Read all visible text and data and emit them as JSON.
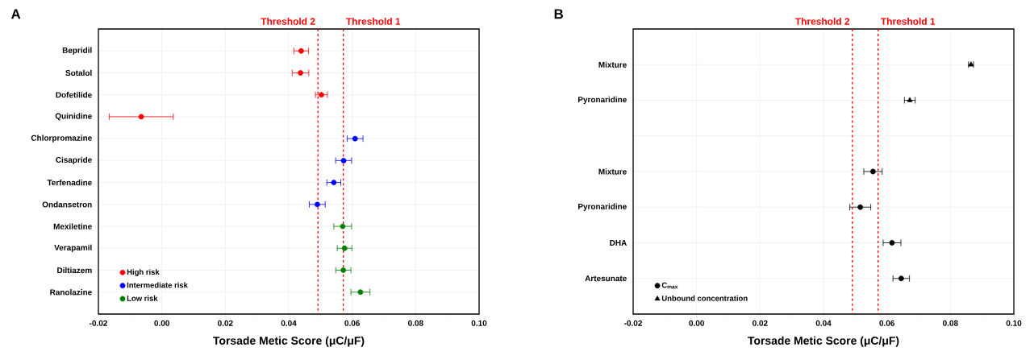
{
  "chart_data": [
    {
      "type": "scatter",
      "title": "A",
      "orientation": "horizontal",
      "xlabel": "Torsade Metic Score (μC/μF)",
      "categories": [
        "Bepridil",
        "Sotalol",
        "Dofetilide",
        "Quinidine",
        "Chlorpromazine",
        "Cisapride",
        "Terfenadine",
        "Ondansetron",
        "Mexiletine",
        "Verapamil",
        "Diltiazem",
        "Ranolazine"
      ],
      "series": [
        {
          "name": "High risk",
          "color": "#ff0000",
          "marker": "circle",
          "values": [
            0.0439,
            0.0437,
            0.0503,
            -0.0065,
            null,
            null,
            null,
            null,
            null,
            null,
            null,
            null
          ],
          "errors": [
            0.0023,
            0.0026,
            0.0019,
            0.0101,
            null,
            null,
            null,
            null,
            null,
            null,
            null,
            null
          ]
        },
        {
          "name": "Intermediate risk",
          "color": "#0000ff",
          "marker": "circle",
          "values": [
            null,
            null,
            null,
            null,
            0.0609,
            0.0573,
            0.0542,
            0.049,
            null,
            null,
            null,
            null
          ],
          "errors": [
            null,
            null,
            null,
            null,
            0.0025,
            0.0025,
            0.0022,
            0.0025,
            null,
            null,
            null,
            null
          ]
        },
        {
          "name": "Low risk",
          "color": "#008000",
          "marker": "circle",
          "values": [
            null,
            null,
            null,
            null,
            null,
            null,
            null,
            null,
            0.057,
            0.0576,
            0.0572,
            0.0626
          ],
          "errors": [
            null,
            null,
            null,
            null,
            null,
            null,
            null,
            null,
            0.0028,
            0.0023,
            0.0024,
            0.003
          ]
        }
      ],
      "xlim": [
        -0.02,
        0.1
      ],
      "xticks": [
        {
          "value": -0.02,
          "label": "-0.02"
        },
        {
          "value": 0,
          "label": "0.00"
        },
        {
          "value": 0.02,
          "label": "0.02"
        },
        {
          "value": 0.04,
          "label": "0.04"
        },
        {
          "value": 0.06,
          "label": "0.06"
        },
        {
          "value": 0.08,
          "label": "0.08"
        },
        {
          "value": 0.1,
          "label": "0.10"
        }
      ],
      "ref_lines": [
        {
          "axis": "x",
          "value": 0.0572,
          "label": "Threshold 1",
          "color": "#ff0000",
          "line_style": "dashed"
        },
        {
          "axis": "x",
          "value": 0.0492,
          "label": "Threshold 2",
          "color": "#ff0000",
          "line_style": "dashed"
        }
      ],
      "grid": true,
      "legend": "bottom left"
    },
    {
      "type": "scatter",
      "title": "B",
      "orientation": "horizontal",
      "xlabel": "Torsade Metic Score (μC/μF)",
      "categories": [
        "Mixture",
        "Pyronaridine",
        null,
        "Mixture",
        "Pyronaridine",
        "DHA",
        "Artesunate"
      ],
      "series": [
        {
          "name": "C$_{max}$",
          "color": "#000000",
          "marker": "circle",
          "values": [
            null,
            null,
            null,
            0.0556,
            0.0516,
            0.0616,
            0.0645
          ],
          "errors": [
            null,
            null,
            null,
            0.0029,
            0.0033,
            0.0028,
            0.0026
          ]
        },
        {
          "name": "Unbound concentration",
          "color": "#000000",
          "marker": "triangle",
          "values": [
            0.0865,
            0.0672,
            null,
            null,
            null,
            null,
            null
          ],
          "errors": [
            0.0008,
            0.0017,
            null,
            null,
            null,
            null,
            null
          ]
        }
      ],
      "xlim": [
        -0.02,
        0.1
      ],
      "xticks": [
        {
          "value": -0.02,
          "label": "-0.02"
        },
        {
          "value": 0,
          "label": "0.00"
        },
        {
          "value": 0.02,
          "label": "0.02"
        },
        {
          "value": 0.04,
          "label": "0.04"
        },
        {
          "value": 0.06,
          "label": "0.06"
        },
        {
          "value": 0.08,
          "label": "0.08"
        },
        {
          "value": 0.1,
          "label": "0.10"
        }
      ],
      "ref_lines": [
        {
          "axis": "x",
          "value": 0.0572,
          "label": "Threshold 1",
          "color": "#ff0000",
          "line_style": "dashed"
        },
        {
          "axis": "x",
          "value": 0.0491,
          "label": "Threshold 2",
          "color": "#ff0000",
          "line_style": "dashed"
        }
      ],
      "grid": true,
      "legend": "bottom left"
    }
  ]
}
